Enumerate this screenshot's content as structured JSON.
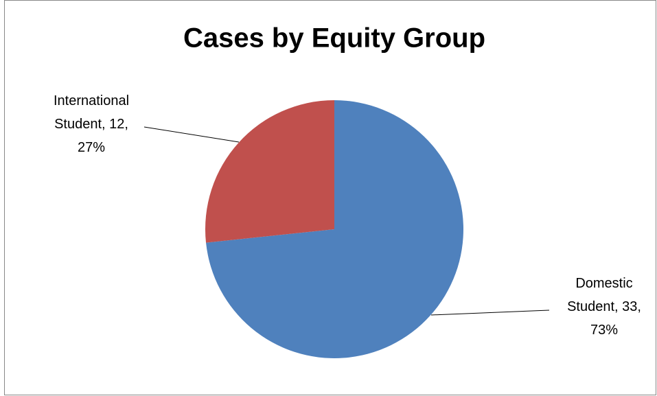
{
  "chart_data": {
    "type": "pie",
    "title": "Cases by Equity Group",
    "categories": [
      "Domestic Student",
      "International Student"
    ],
    "values": [
      33,
      12
    ],
    "value_labels": [
      "Domestic Student, 33, 73%",
      "International Student, 12, 27%"
    ],
    "colors": [
      "#4f81bd",
      "#c0504d"
    ]
  }
}
